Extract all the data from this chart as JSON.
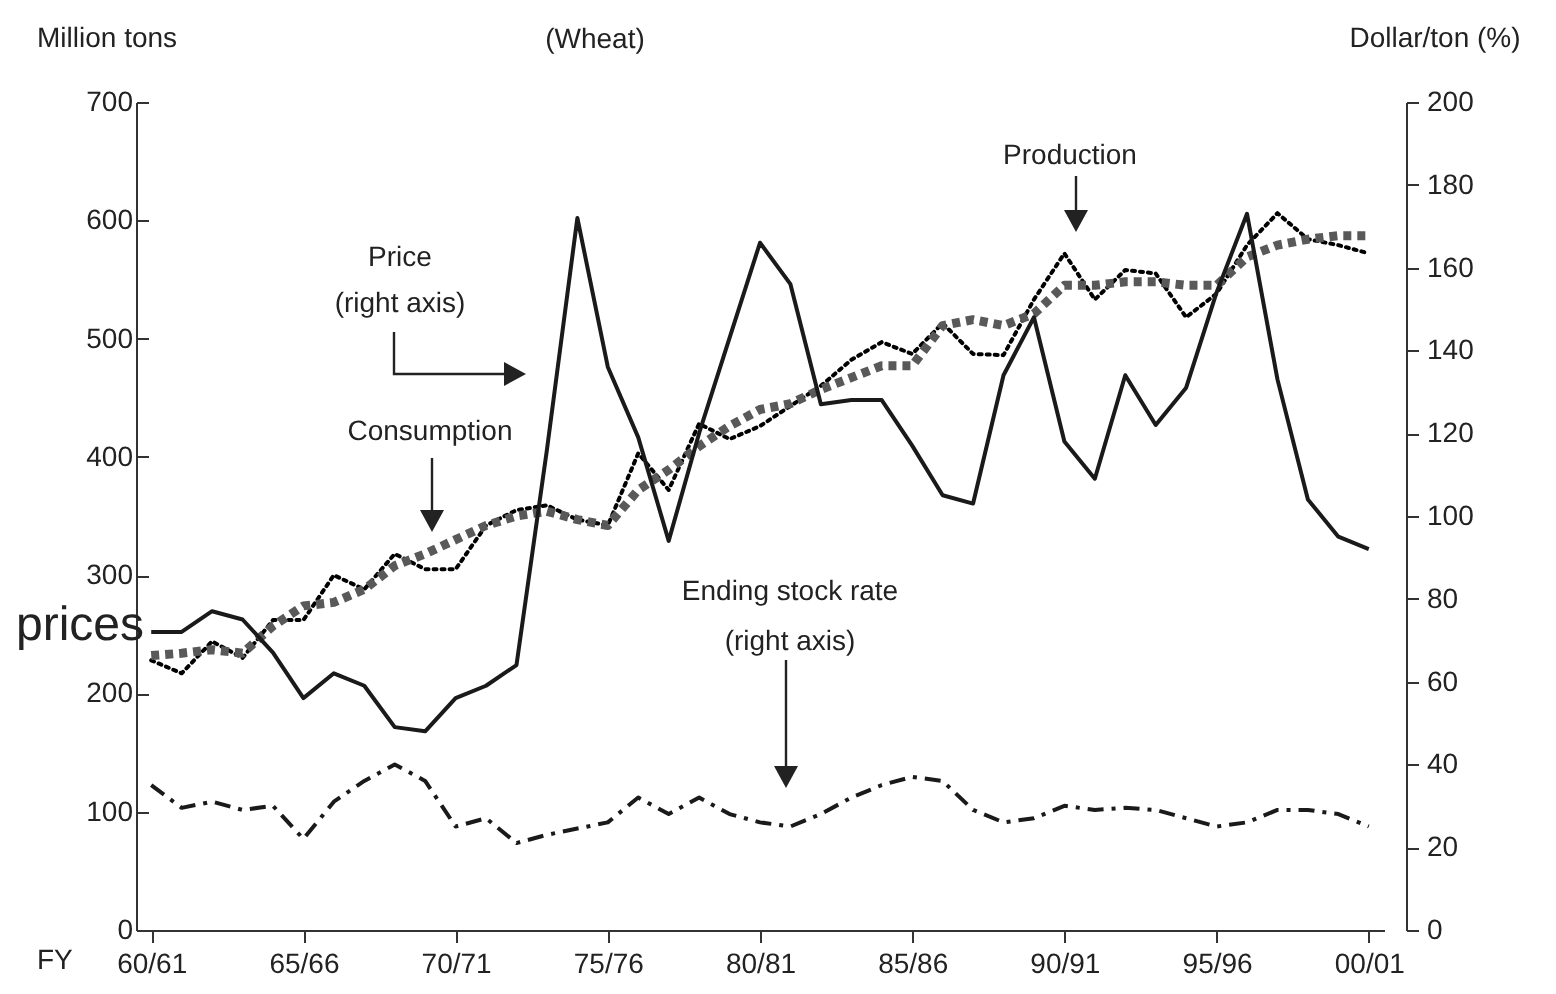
{
  "chart_data": {
    "type": "line",
    "title": "(Wheat)",
    "xlabel": "FY",
    "ylabel": "Million tons",
    "y2label": "Dollar/ton (%)",
    "categories": [
      "60/61",
      null,
      null,
      null,
      null,
      "65/66",
      null,
      null,
      null,
      null,
      "70/71",
      null,
      null,
      null,
      null,
      "75/76",
      null,
      null,
      null,
      null,
      "80/81",
      null,
      null,
      null,
      null,
      "85/86",
      null,
      null,
      null,
      null,
      "90/91",
      null,
      null,
      null,
      null,
      "95/96",
      null,
      null,
      null,
      null,
      "00/01"
    ],
    "series": [
      {
        "color": "#000000",
        "line_style": "dotted",
        "values": [
          228,
          217,
          244,
          230,
          262,
          262,
          300,
          288,
          318,
          305,
          305,
          342,
          355,
          359,
          347,
          342,
          403,
          372,
          428,
          415,
          426,
          443,
          460,
          482,
          497,
          487,
          513,
          487,
          486,
          533,
          572,
          533,
          558,
          555,
          518,
          538,
          579,
          606,
          584,
          579,
          572
        ]
      },
      {
        "color": "#595959",
        "line_style": "dashed",
        "values": [
          232,
          234,
          237,
          234,
          257,
          274,
          277,
          288,
          308,
          318,
          330,
          342,
          350,
          354,
          347,
          342,
          372,
          389,
          409,
          426,
          440,
          445,
          457,
          467,
          477,
          477,
          511,
          516,
          511,
          521,
          545,
          545,
          548,
          548,
          545,
          545,
          569,
          579,
          584,
          587,
          587
        ]
      },
      {
        "color": "#1a1a1a",
        "line_style": "solid",
        "axis": "y2",
        "values": [
          72,
          72,
          77,
          75,
          67,
          56,
          62,
          59,
          49,
          48,
          56,
          59,
          64,
          116,
          172,
          136,
          119,
          94,
          120,
          143,
          166,
          156,
          127,
          128,
          128,
          117,
          105,
          103,
          134,
          148,
          118,
          109,
          134,
          122,
          131,
          154,
          173,
          133,
          104,
          95,
          92
        ]
      },
      {
        "color": "#1a1a1a",
        "line_style": "dashdot",
        "axis": "y2",
        "values": [
          35,
          29.5,
          31,
          29,
          30,
          22,
          31,
          36,
          40,
          36,
          25,
          27,
          21,
          23,
          24.5,
          26,
          32,
          28,
          32,
          28,
          26,
          25,
          28,
          32,
          35,
          37,
          36,
          29,
          26,
          27,
          30,
          29,
          29.5,
          29,
          27,
          25,
          26,
          29,
          29,
          28,
          25
        ]
      }
    ],
    "ylim": [
      0,
      700
    ],
    "yticks": [
      0,
      100,
      200,
      300,
      400,
      500,
      600,
      700
    ],
    "y2lim": [
      0,
      200
    ],
    "y2ticks": [
      0,
      20,
      40,
      60,
      80,
      100,
      120,
      140,
      160,
      180,
      200
    ],
    "annotations": [
      "Production",
      "Consumption",
      "Price\n(right axis)",
      "Ending stock rate\n(right axis)",
      "prices"
    ]
  }
}
